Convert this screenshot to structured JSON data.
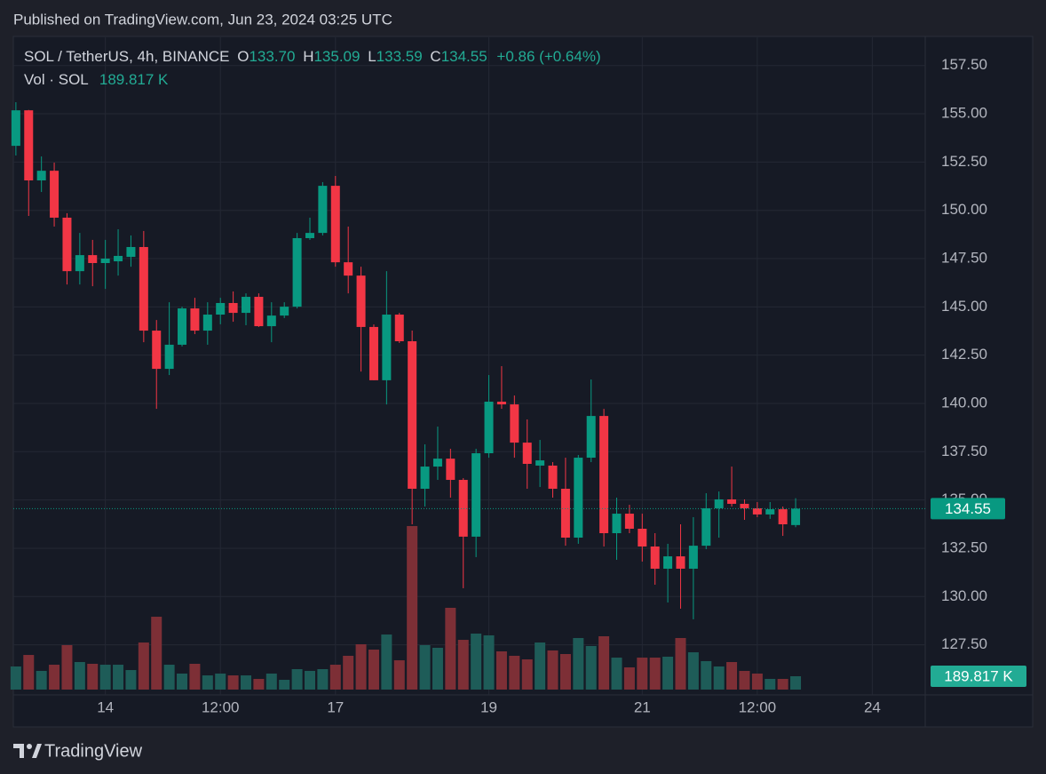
{
  "header": {
    "published": "Published on TradingView.com, Jun 23, 2024 03:25 UTC"
  },
  "chart_data": {
    "type": "candlestick",
    "legend": {
      "symbol": "SOL / TetherUS, 4h, BINANCE",
      "items": [
        {
          "key": "O",
          "value": "133.70"
        },
        {
          "key": "H",
          "value": "135.09"
        },
        {
          "key": "L",
          "value": "133.59"
        },
        {
          "key": "C",
          "value": "134.55"
        }
      ],
      "change": "+0.86 (+0.64%)",
      "volume_name": "Vol · SOL",
      "volume_value": "189.817 K"
    },
    "open": [
      153.34,
      155.18,
      151.55,
      152.05,
      149.62,
      146.85,
      147.68,
      147.27,
      147.36,
      147.59,
      148.1,
      143.77,
      141.79,
      143.04,
      144.92,
      143.77,
      144.6,
      145.2,
      144.69,
      145.52,
      144.0,
      144.55,
      145.01,
      148.56,
      148.83,
      151.27,
      147.31,
      146.62,
      143.96,
      141.2,
      144.6,
      143.22,
      135.58,
      136.73,
      137.14,
      136.04,
      133.1,
      137.42,
      140.09,
      139.95,
      137.97,
      136.78,
      136.78,
      135.58,
      133.05,
      137.19,
      139.35,
      133.28,
      134.29,
      133.51,
      132.59,
      131.44,
      132.08,
      131.44,
      132.63,
      134.57,
      135.03,
      134.8,
      134.57,
      134.25,
      134.52,
      133.7
    ],
    "high": [
      155.6,
      155.2,
      152.79,
      152.47,
      149.85,
      148.83,
      148.47,
      148.47,
      149.02,
      148.7,
      148.93,
      144.32,
      145.24,
      145.01,
      145.47,
      145.24,
      145.47,
      145.8,
      145.7,
      145.7,
      145.24,
      145.24,
      148.83,
      149.62,
      151.46,
      151.78,
      149.16,
      147.08,
      144.09,
      146.85,
      144.69,
      143.77,
      137.88,
      138.8,
      137.65,
      136.13,
      137.65,
      141.47,
      141.93,
      140.41,
      139.17,
      138.11,
      136.96,
      137.19,
      137.33,
      141.24,
      139.72,
      135.12,
      134.75,
      134.29,
      133.28,
      132.73,
      133.74,
      134.11,
      135.35,
      135.44,
      136.73,
      135.03,
      134.89,
      134.89,
      134.66,
      135.09
    ],
    "low": [
      152.84,
      149.71,
      150.95,
      149.16,
      146.16,
      146.16,
      146.07,
      145.93,
      146.62,
      147.08,
      143.17,
      139.72,
      141.47,
      142.95,
      143.59,
      143.04,
      144.1,
      144.23,
      144.05,
      143.96,
      143.17,
      144.42,
      144.92,
      148.47,
      148.7,
      147.08,
      145.7,
      141.65,
      141.2,
      139.95,
      143.13,
      133.74,
      134.66,
      136.04,
      135.12,
      130.43,
      132.04,
      137.19,
      139.72,
      137.19,
      135.58,
      135.67,
      135.12,
      132.63,
      132.73,
      136.96,
      132.59,
      131.9,
      133.28,
      131.81,
      130.61,
      129.69,
      129.37,
      128.82,
      132.45,
      133.05,
      134.66,
      133.97,
      134.11,
      134.02,
      133.14,
      133.59
    ],
    "close": [
      155.18,
      151.55,
      152.05,
      149.62,
      146.85,
      147.68,
      147.27,
      147.5,
      147.64,
      148.1,
      143.77,
      141.79,
      143.04,
      144.92,
      143.77,
      144.6,
      145.2,
      144.69,
      145.52,
      144.0,
      144.55,
      145.01,
      148.56,
      148.83,
      151.27,
      147.31,
      146.62,
      143.96,
      141.2,
      144.6,
      143.22,
      135.58,
      136.73,
      137.14,
      136.04,
      133.1,
      137.42,
      140.09,
      139.95,
      137.97,
      136.87,
      137.05,
      135.58,
      133.05,
      137.19,
      139.35,
      133.28,
      134.29,
      133.51,
      132.59,
      131.44,
      132.08,
      131.44,
      132.63,
      134.57,
      135.03,
      134.8,
      134.57,
      134.25,
      134.52,
      133.74,
      134.55
    ],
    "volume": [
      329,
      493,
      266,
      354,
      633,
      392,
      367,
      354,
      354,
      278,
      670,
      1037,
      354,
      228,
      367,
      202,
      228,
      202,
      202,
      152,
      228,
      139,
      291,
      266,
      291,
      354,
      481,
      645,
      569,
      784,
      417,
      2328,
      633,
      595,
      1164,
      708,
      797,
      772,
      544,
      481,
      430,
      670,
      557,
      506,
      734,
      620,
      759,
      455,
      316,
      455,
      455,
      468,
      734,
      531,
      405,
      329,
      392,
      266,
      228,
      152,
      152,
      189.817
    ],
    "xlim": [
      -0.2,
      71
    ],
    "xticks": [
      {
        "value": 7,
        "label": "14"
      },
      {
        "value": 16,
        "label": "12:00"
      },
      {
        "value": 25,
        "label": "17"
      },
      {
        "value": 37,
        "label": "19"
      },
      {
        "value": 49,
        "label": "21"
      },
      {
        "value": 58,
        "label": "12:00"
      },
      {
        "value": 67,
        "label": "24"
      }
    ],
    "ylim": [
      125.18,
      158.96
    ],
    "yticks": [
      {
        "value": 127.5,
        "label": "127.50"
      },
      {
        "value": 130,
        "label": "130.00"
      },
      {
        "value": 132.5,
        "label": "132.50"
      },
      {
        "value": 135,
        "label": "135.00"
      },
      {
        "value": 137.5,
        "label": "137.50"
      },
      {
        "value": 140,
        "label": "140.00"
      },
      {
        "value": 142.5,
        "label": "142.50"
      },
      {
        "value": 145,
        "label": "145.00"
      },
      {
        "value": 147.5,
        "label": "147.50"
      },
      {
        "value": 150,
        "label": "150.00"
      },
      {
        "value": 152.5,
        "label": "152.50"
      },
      {
        "value": 155,
        "label": "155.00"
      },
      {
        "value": 157.5,
        "label": "157.50"
      }
    ],
    "vlim": [
      0,
      2530
    ],
    "grid": true,
    "up_color": "#089981",
    "down_color": "#f23645",
    "volume_up_color": "#1e5c58",
    "volume_down_color": "#7d2f36",
    "last_price_label": "134.55",
    "last_volume_label": "189.817 K"
  },
  "footer": {
    "brand": "TradingView"
  }
}
